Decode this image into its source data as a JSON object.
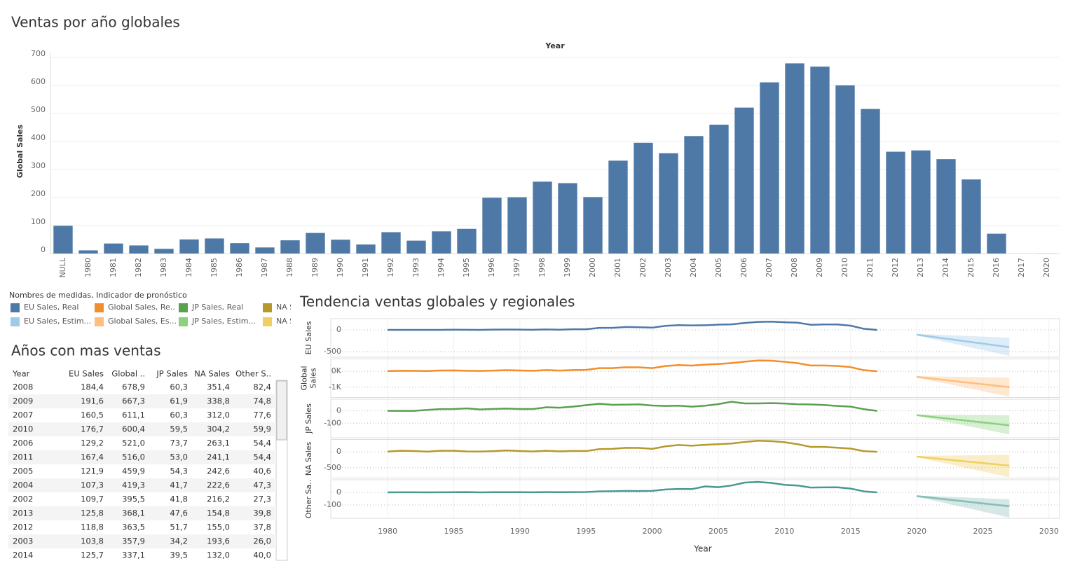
{
  "chart_data": [
    {
      "type": "bar",
      "title": "Ventas por año globales",
      "xlabel": "Year",
      "ylabel": "Global Sales",
      "categories": [
        "NULL",
        "1980",
        "1981",
        "1982",
        "1983",
        "1984",
        "1985",
        "1986",
        "1987",
        "1988",
        "1989",
        "1990",
        "1991",
        "1992",
        "1993",
        "1994",
        "1995",
        "1996",
        "1997",
        "1998",
        "1999",
        "2000",
        "2001",
        "2002",
        "2003",
        "2004",
        "2005",
        "2006",
        "2007",
        "2008",
        "2009",
        "2010",
        "2011",
        "2012",
        "2013",
        "2014",
        "2015",
        "2016",
        "2017",
        "2020"
      ],
      "values": [
        99.0,
        11.4,
        35.8,
        28.9,
        16.8,
        50.4,
        53.9,
        37.1,
        21.7,
        47.2,
        73.5,
        49.4,
        32.2,
        76.2,
        46.0,
        79.2,
        88.1,
        199.2,
        201.0,
        256.5,
        251.3,
        201.6,
        331.5,
        395.5,
        357.9,
        419.3,
        459.9,
        521.0,
        611.1,
        678.9,
        667.3,
        600.4,
        516.0,
        363.5,
        368.1,
        337.1,
        264.4,
        70.9,
        0.05,
        0.29
      ],
      "color": "#4e79a7",
      "ylim": [
        0,
        700
      ],
      "yticks": [
        0,
        100,
        200,
        300,
        400,
        500,
        600,
        700
      ],
      "grid": true
    },
    {
      "type": "line",
      "title": "Tendencia ventas globales y regionales",
      "xlabel": "Year",
      "xlim": [
        1975.7,
        2030.8
      ],
      "xticks": [
        1980,
        1985,
        1990,
        1995,
        2000,
        2005,
        2010,
        2015,
        2020,
        2025,
        2030
      ],
      "x": [
        1980,
        1981,
        1982,
        1983,
        1984,
        1985,
        1986,
        1987,
        1988,
        1989,
        1990,
        1991,
        1992,
        1993,
        1994,
        1995,
        1996,
        1997,
        1998,
        1999,
        2000,
        2001,
        2002,
        2003,
        2004,
        2005,
        2006,
        2007,
        2008,
        2009,
        2010,
        2011,
        2012,
        2013,
        2014,
        2015,
        2016,
        2017
      ],
      "legend": {
        "title": "Nombres de medidas, Indicador de pronóstico",
        "entries": [
          {
            "label": "EU Sales, Real",
            "color": "#4e79a7"
          },
          {
            "label": "Global Sales, Re..",
            "color": "#f28e2b"
          },
          {
            "label": "JP Sales, Real",
            "color": "#59a14f"
          },
          {
            "label": "NA S",
            "color": "#b6992d"
          },
          {
            "label": "EU Sales, Estim...",
            "color": "#a0cbe8"
          },
          {
            "label": "Global Sales, Es...",
            "color": "#ffbe7d"
          },
          {
            "label": "JP Sales, Estim...",
            "color": "#8cd17d"
          },
          {
            "label": "NA S",
            "color": "#f1ce63"
          }
        ]
      },
      "panels": [
        {
          "ylabel": [
            "EU Sales"
          ],
          "ylim": [
            -630,
            260
          ],
          "yticks": [
            0,
            -500
          ],
          "color": "#4e79a7",
          "values": [
            0.7,
            2.0,
            1.7,
            0.8,
            2.1,
            4.7,
            2.8,
            1.4,
            6.6,
            8.4,
            7.6,
            4.0,
            11.7,
            4.7,
            14.9,
            14.9,
            47.3,
            48.3,
            66.9,
            62.7,
            52.8,
            94.9,
            109.7,
            103.8,
            107.3,
            121.9,
            129.2,
            160.5,
            184.4,
            191.6,
            176.7,
            167.4,
            118.8,
            125.8,
            125.7,
            97.7,
            26.8,
            0.0
          ],
          "forecast": {
            "color": "#a0cbe8",
            "x": [
              2020,
              2027
            ],
            "values": [
              -110,
              -400
            ],
            "lower": [
              -130,
              -600
            ],
            "upper": [
              -90,
              -180
            ]
          }
        },
        {
          "ylabel": [
            "Global",
            "Sales"
          ],
          "ylim": [
            -1650,
            780
          ],
          "yticks": [
            {
              "value": 0,
              "label": "0K"
            },
            {
              "value": -1000,
              "label": "-1K"
            }
          ],
          "color": "#f28e2b",
          "values": [
            11.4,
            35.8,
            28.9,
            16.8,
            50.4,
            53.9,
            37.1,
            21.7,
            47.2,
            73.5,
            49.4,
            32.2,
            76.2,
            46.0,
            79.2,
            88.1,
            199.2,
            201.0,
            256.5,
            251.3,
            201.6,
            331.5,
            395.5,
            357.9,
            419.3,
            459.9,
            521.0,
            611.1,
            678.9,
            667.3,
            600.4,
            516.0,
            363.5,
            368.1,
            337.1,
            264.4,
            70.9,
            0.05
          ],
          "forecast": {
            "color": "#ffbe7d",
            "x": [
              2020,
              2027
            ],
            "values": [
              -350,
              -1000
            ],
            "lower": [
              -400,
              -1600
            ],
            "upper": [
              -300,
              -400
            ]
          }
        },
        {
          "ylabel": [
            "JP Sales"
          ],
          "ylim": [
            -217,
            94
          ],
          "yticks": [
            0,
            -100
          ],
          "color": "#59a14f",
          "values": [
            0.0,
            0.0,
            0.0,
            8.1,
            14.3,
            14.6,
            19.8,
            11.6,
            15.8,
            18.4,
            14.9,
            14.8,
            28.9,
            25.3,
            34.0,
            45.8,
            57.4,
            48.9,
            50.0,
            52.3,
            42.8,
            39.9,
            41.8,
            34.2,
            41.7,
            54.3,
            73.7,
            60.3,
            60.3,
            61.9,
            59.5,
            53.0,
            51.7,
            47.6,
            39.5,
            33.7,
            13.7,
            0.05
          ],
          "forecast": {
            "color": "#8cd17d",
            "x": [
              2020,
              2027
            ],
            "values": [
              -35,
              -117
            ],
            "lower": [
              -40,
              -190
            ],
            "upper": [
              -30,
              -35
            ]
          }
        },
        {
          "ylabel": [
            "NA Sales"
          ],
          "ylim": [
            -826,
            391
          ],
          "yticks": [
            0,
            -500
          ],
          "color": "#b6992d",
          "values": [
            10.6,
            33.4,
            26.9,
            7.8,
            33.3,
            33.7,
            12.5,
            8.5,
            23.9,
            45.2,
            25.5,
            12.8,
            33.9,
            15.1,
            28.2,
            24.8,
            86.8,
            94.8,
            128.4,
            126.1,
            94.5,
            174.0,
            216.2,
            193.6,
            222.6,
            242.6,
            263.1,
            312.0,
            351.4,
            338.8,
            304.2,
            241.1,
            155.0,
            154.8,
            132.0,
            102.8,
            22.7,
            0.0
          ],
          "forecast": {
            "color": "#f1ce63",
            "x": [
              2020,
              2027
            ],
            "values": [
              -150,
              -435
            ],
            "lower": [
              -170,
              -800
            ],
            "upper": [
              -130,
              -90
            ]
          }
        },
        {
          "ylabel": [
            "Other Sa.."
          ],
          "ylim": [
            -206,
            100
          ],
          "yticks": [
            0,
            -100
          ],
          "color": "#499894",
          "values": [
            0.1,
            0.3,
            0.3,
            0.1,
            0.7,
            0.9,
            1.9,
            0.2,
            1.0,
            1.5,
            1.4,
            0.7,
            1.7,
            0.9,
            2.2,
            2.6,
            7.7,
            9.1,
            11.0,
            10.1,
            11.6,
            22.7,
            27.3,
            26.0,
            47.3,
            40.6,
            54.4,
            77.6,
            82.4,
            74.8,
            59.9,
            54.4,
            37.8,
            39.8,
            40.0,
            30.0,
            7.8,
            0.0
          ],
          "forecast": {
            "color": "#86bcb6",
            "x": [
              2020,
              2027
            ],
            "values": [
              -30,
              -111
            ],
            "lower": [
              -35,
              -200
            ],
            "upper": [
              -25,
              -55
            ]
          }
        }
      ]
    }
  ],
  "table": {
    "title": "Años con mas ventas",
    "columns": [
      "Year",
      "EU Sales",
      "Global ..",
      "JP Sales",
      "NA Sales",
      "Other S.."
    ],
    "rows": [
      [
        "2008",
        "184,4",
        "678,9",
        "60,3",
        "351,4",
        "82,4"
      ],
      [
        "2009",
        "191,6",
        "667,3",
        "61,9",
        "338,8",
        "74,8"
      ],
      [
        "2007",
        "160,5",
        "611,1",
        "60,3",
        "312,0",
        "77,6"
      ],
      [
        "2010",
        "176,7",
        "600,4",
        "59,5",
        "304,2",
        "59,9"
      ],
      [
        "2006",
        "129,2",
        "521,0",
        "73,7",
        "263,1",
        "54,4"
      ],
      [
        "2011",
        "167,4",
        "516,0",
        "53,0",
        "241,1",
        "54,4"
      ],
      [
        "2005",
        "121,9",
        "459,9",
        "54,3",
        "242,6",
        "40,6"
      ],
      [
        "2004",
        "107,3",
        "419,3",
        "41,7",
        "222,6",
        "47,3"
      ],
      [
        "2002",
        "109,7",
        "395,5",
        "41,8",
        "216,2",
        "27,3"
      ],
      [
        "2013",
        "125,8",
        "368,1",
        "47,6",
        "154,8",
        "39,8"
      ],
      [
        "2012",
        "118,8",
        "363,5",
        "51,7",
        "155,0",
        "37,8"
      ],
      [
        "2003",
        "103,8",
        "357,9",
        "34,2",
        "193,6",
        "26,0"
      ],
      [
        "2014",
        "125,7",
        "337,1",
        "39,5",
        "132,0",
        "40,0"
      ]
    ]
  }
}
